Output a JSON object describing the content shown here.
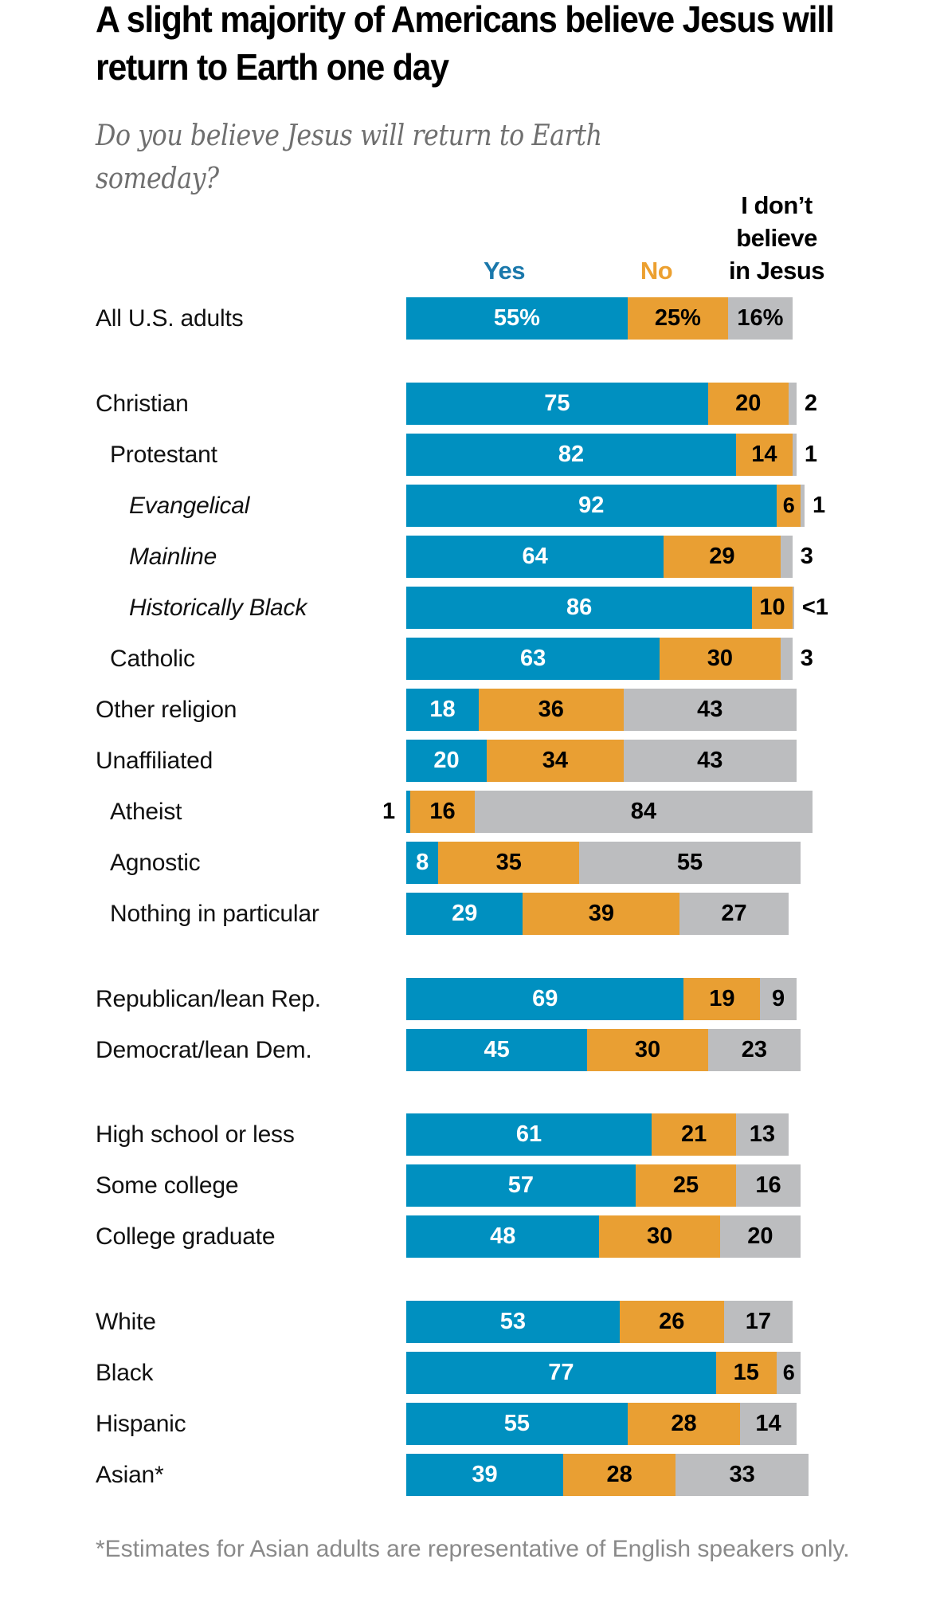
{
  "title": "A slight majority of Americans believe Jesus will return to Earth one day",
  "subtitle": "Do you believe Jesus will return to Earth someday?",
  "footnote": "*Estimates for Asian adults are representative of English speakers only.",
  "colors": {
    "yes": "#0090c0",
    "no": "#e99f33",
    "dont_believe": "#bcbdbf",
    "yes_legend": "#1a78ab",
    "no_legend": "#eca030"
  },
  "chart_data": {
    "type": "bar",
    "orientation": "horizontal",
    "stacked": true,
    "title": "A slight majority of Americans believe Jesus will return to Earth one day",
    "subtitle": "Do you believe Jesus will return to Earth someday?",
    "xlabel": "",
    "ylabel": "",
    "xlim": [
      0,
      100
    ],
    "grid": false,
    "legend_position": "top",
    "series": [
      {
        "name": "Yes",
        "key": "yes"
      },
      {
        "name": "No",
        "key": "no"
      },
      {
        "name": "I don’t believe in Jesus",
        "key": "dont_believe"
      }
    ],
    "legend_lines": {
      "yes": [
        "Yes"
      ],
      "no": [
        "No"
      ],
      "dont_believe": [
        "I don’t",
        "believe",
        "in Jesus"
      ]
    },
    "rows": [
      {
        "label": "All U.S. adults",
        "indent": 0,
        "italic": false,
        "group": 0,
        "yes": 55,
        "no": 25,
        "dont_believe": 16,
        "labels": {
          "yes": "55%",
          "no": "25%",
          "dont_believe": "16%"
        }
      },
      {
        "label": "Christian",
        "indent": 0,
        "italic": false,
        "group": 1,
        "yes": 75,
        "no": 20,
        "dont_believe": 2,
        "labels": {
          "yes": "75",
          "no": "20",
          "dont_believe_outside": "2"
        }
      },
      {
        "label": "Protestant",
        "indent": 1,
        "italic": false,
        "group": 1,
        "yes": 82,
        "no": 14,
        "dont_believe": 1,
        "labels": {
          "yes": "82",
          "no": "14",
          "dont_believe_outside": "1"
        }
      },
      {
        "label": "Evangelical",
        "indent": 2,
        "italic": true,
        "group": 1,
        "yes": 92,
        "no": 6,
        "dont_believe": 1,
        "labels": {
          "yes": "92",
          "no": "6",
          "dont_believe_outside": "1"
        }
      },
      {
        "label": "Mainline",
        "indent": 2,
        "italic": true,
        "group": 1,
        "yes": 64,
        "no": 29,
        "dont_believe": 3,
        "labels": {
          "yes": "64",
          "no": "29",
          "dont_believe_outside": "3"
        }
      },
      {
        "label": "Historically Black",
        "indent": 2,
        "italic": true,
        "group": 1,
        "yes": 86,
        "no": 10,
        "dont_believe": 0.4,
        "labels": {
          "yes": "86",
          "no": "10",
          "dont_believe_outside": "<1"
        }
      },
      {
        "label": "Catholic",
        "indent": 1,
        "italic": false,
        "group": 1,
        "yes": 63,
        "no": 30,
        "dont_believe": 3,
        "labels": {
          "yes": "63",
          "no": "30",
          "dont_believe_outside": "3"
        }
      },
      {
        "label": "Other religion",
        "indent": 0,
        "italic": false,
        "group": 1,
        "yes": 18,
        "no": 36,
        "dont_believe": 43,
        "labels": {
          "yes": "18",
          "no": "36",
          "dont_believe": "43"
        }
      },
      {
        "label": "Unaffiliated",
        "indent": 0,
        "italic": false,
        "group": 1,
        "yes": 20,
        "no": 34,
        "dont_believe": 43,
        "labels": {
          "yes": "20",
          "no": "34",
          "dont_believe": "43"
        }
      },
      {
        "label": "Atheist",
        "indent": 1,
        "italic": false,
        "group": 1,
        "yes": 1,
        "no": 16,
        "dont_believe": 84,
        "labels": {
          "yes_outside_left": "1",
          "no": "16",
          "dont_believe": "84"
        }
      },
      {
        "label": "Agnostic",
        "indent": 1,
        "italic": false,
        "group": 1,
        "yes": 8,
        "no": 35,
        "dont_believe": 55,
        "labels": {
          "yes": "8",
          "no": "35",
          "dont_believe": "55"
        }
      },
      {
        "label": "Nothing in particular",
        "indent": 1,
        "italic": false,
        "group": 1,
        "yes": 29,
        "no": 39,
        "dont_believe": 27,
        "labels": {
          "yes": "29",
          "no": "39",
          "dont_believe": "27"
        }
      },
      {
        "label": "Republican/lean Rep.",
        "indent": 0,
        "italic": false,
        "group": 2,
        "yes": 69,
        "no": 19,
        "dont_believe": 9,
        "labels": {
          "yes": "69",
          "no": "19",
          "dont_believe": "9"
        }
      },
      {
        "label": "Democrat/lean Dem.",
        "indent": 0,
        "italic": false,
        "group": 2,
        "yes": 45,
        "no": 30,
        "dont_believe": 23,
        "labels": {
          "yes": "45",
          "no": "30",
          "dont_believe": "23"
        }
      },
      {
        "label": "High school or less",
        "indent": 0,
        "italic": false,
        "group": 3,
        "yes": 61,
        "no": 21,
        "dont_believe": 13,
        "labels": {
          "yes": "61",
          "no": "21",
          "dont_believe": "13"
        }
      },
      {
        "label": "Some college",
        "indent": 0,
        "italic": false,
        "group": 3,
        "yes": 57,
        "no": 25,
        "dont_believe": 16,
        "labels": {
          "yes": "57",
          "no": "25",
          "dont_believe": "16"
        }
      },
      {
        "label": "College graduate",
        "indent": 0,
        "italic": false,
        "group": 3,
        "yes": 48,
        "no": 30,
        "dont_believe": 20,
        "labels": {
          "yes": "48",
          "no": "30",
          "dont_believe": "20"
        }
      },
      {
        "label": "White",
        "indent": 0,
        "italic": false,
        "group": 4,
        "yes": 53,
        "no": 26,
        "dont_believe": 17,
        "labels": {
          "yes": "53",
          "no": "26",
          "dont_believe": "17"
        }
      },
      {
        "label": "Black",
        "indent": 0,
        "italic": false,
        "group": 4,
        "yes": 77,
        "no": 15,
        "dont_believe": 6,
        "labels": {
          "yes": "77",
          "no": "15",
          "dont_believe": "6"
        }
      },
      {
        "label": "Hispanic",
        "indent": 0,
        "italic": false,
        "group": 4,
        "yes": 55,
        "no": 28,
        "dont_believe": 14,
        "labels": {
          "yes": "55",
          "no": "28",
          "dont_believe": "14"
        }
      },
      {
        "label": "Asian*",
        "indent": 0,
        "italic": false,
        "group": 4,
        "yes": 39,
        "no": 28,
        "dont_believe": 33,
        "labels": {
          "yes": "39",
          "no": "28",
          "dont_believe": "33"
        }
      }
    ]
  }
}
